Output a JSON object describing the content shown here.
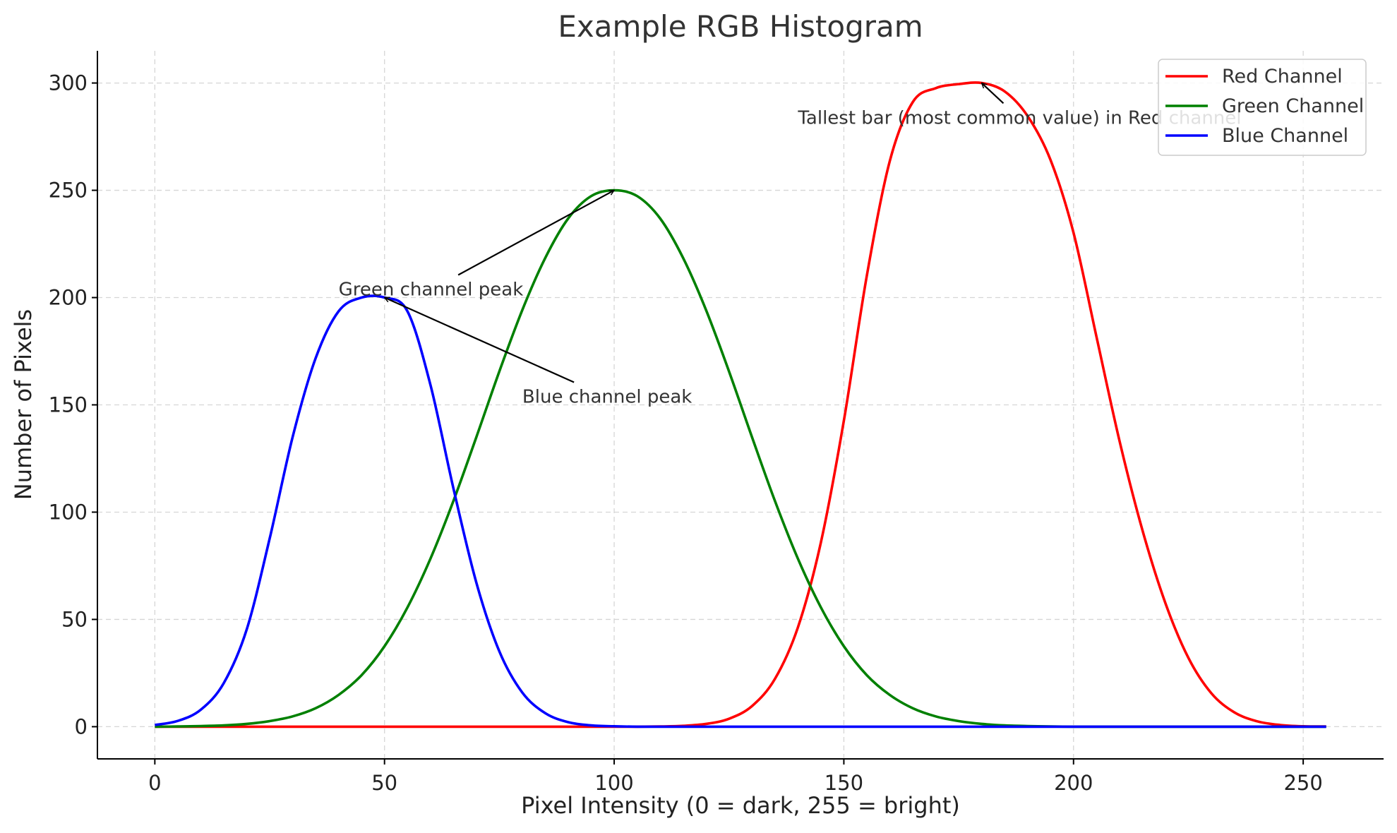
{
  "chart_data": {
    "type": "line",
    "title": "Example RGB Histogram",
    "xlabel": "Pixel Intensity (0 = dark, 255 = bright)",
    "ylabel": "Number of Pixels",
    "xlim": [
      -12.5,
      267.5
    ],
    "ylim": [
      -15,
      315
    ],
    "x_ticks": [
      0,
      50,
      100,
      150,
      200,
      250
    ],
    "y_ticks": [
      0,
      50,
      100,
      150,
      200,
      250,
      300
    ],
    "grid": true,
    "legend_position": "top-right",
    "x": [
      0,
      5,
      10,
      15,
      20,
      25,
      30,
      35,
      40,
      45,
      50,
      55,
      60,
      65,
      70,
      75,
      80,
      85,
      90,
      95,
      100,
      105,
      110,
      115,
      120,
      125,
      130,
      135,
      140,
      145,
      150,
      155,
      160,
      165,
      170,
      175,
      180,
      185,
      190,
      195,
      200,
      205,
      210,
      215,
      220,
      225,
      230,
      235,
      240,
      245,
      250,
      255
    ],
    "series": [
      {
        "name": "Red Channel",
        "color": "#ff0000",
        "values": [
          0,
          0,
          0,
          0,
          0,
          0,
          0,
          0,
          0,
          0,
          0,
          0,
          0,
          0,
          0,
          0,
          0,
          0,
          0,
          0,
          0,
          0,
          0.1,
          0.4,
          1.3,
          3.7,
          9.6,
          22.3,
          46.3,
          85.9,
          142.6,
          210.2,
          263.6,
          291.1,
          297.6,
          299.5,
          300,
          296.1,
          284.6,
          264.1,
          230.2,
          181.7,
          133.3,
          91.6,
          57.6,
          32.1,
          15.6,
          6.7,
          2.5,
          0.8,
          0.2,
          0.1
        ]
      },
      {
        "name": "Green Channel",
        "color": "#008000",
        "values": [
          0,
          0.1,
          0.3,
          0.6,
          1.3,
          2.6,
          4.8,
          8.6,
          14.8,
          24,
          37.5,
          55.6,
          78.3,
          105.2,
          135,
          165.6,
          194.2,
          218.5,
          236.9,
          247.3,
          250,
          247.3,
          236.9,
          218.5,
          194.2,
          165.6,
          135,
          105.2,
          78.3,
          55.6,
          37.5,
          24,
          14.8,
          8.6,
          4.8,
          2.6,
          1.3,
          0.6,
          0.3,
          0.1,
          0,
          0,
          0,
          0,
          0,
          0,
          0,
          0,
          0,
          0,
          0,
          0
        ]
      },
      {
        "name": "Blue Channel",
        "color": "#0000ff",
        "values": [
          0.8,
          2.7,
          7.9,
          20.3,
          45.3,
          87.7,
          135,
          171.7,
          193.6,
          200,
          200,
          193.6,
          159.3,
          111.1,
          67.1,
          35.1,
          15.9,
          6.3,
          2.1,
          0.6,
          0.2,
          0,
          0,
          0,
          0,
          0,
          0,
          0,
          0,
          0,
          0,
          0,
          0,
          0,
          0,
          0,
          0,
          0,
          0,
          0,
          0,
          0,
          0,
          0,
          0,
          0,
          0,
          0,
          0,
          0,
          0,
          0
        ]
      }
    ],
    "annotations": [
      {
        "text": "Tallest bar (most common value) in Red channel",
        "text_at": [
          140,
          281
        ],
        "arrow_to": [
          180,
          300
        ]
      },
      {
        "text": "Green channel peak",
        "text_at": [
          40,
          201
        ],
        "arrow_to": [
          100,
          250
        ]
      },
      {
        "text": "Blue channel peak",
        "text_at": [
          80,
          151
        ],
        "arrow_to": [
          50,
          200
        ]
      }
    ]
  }
}
